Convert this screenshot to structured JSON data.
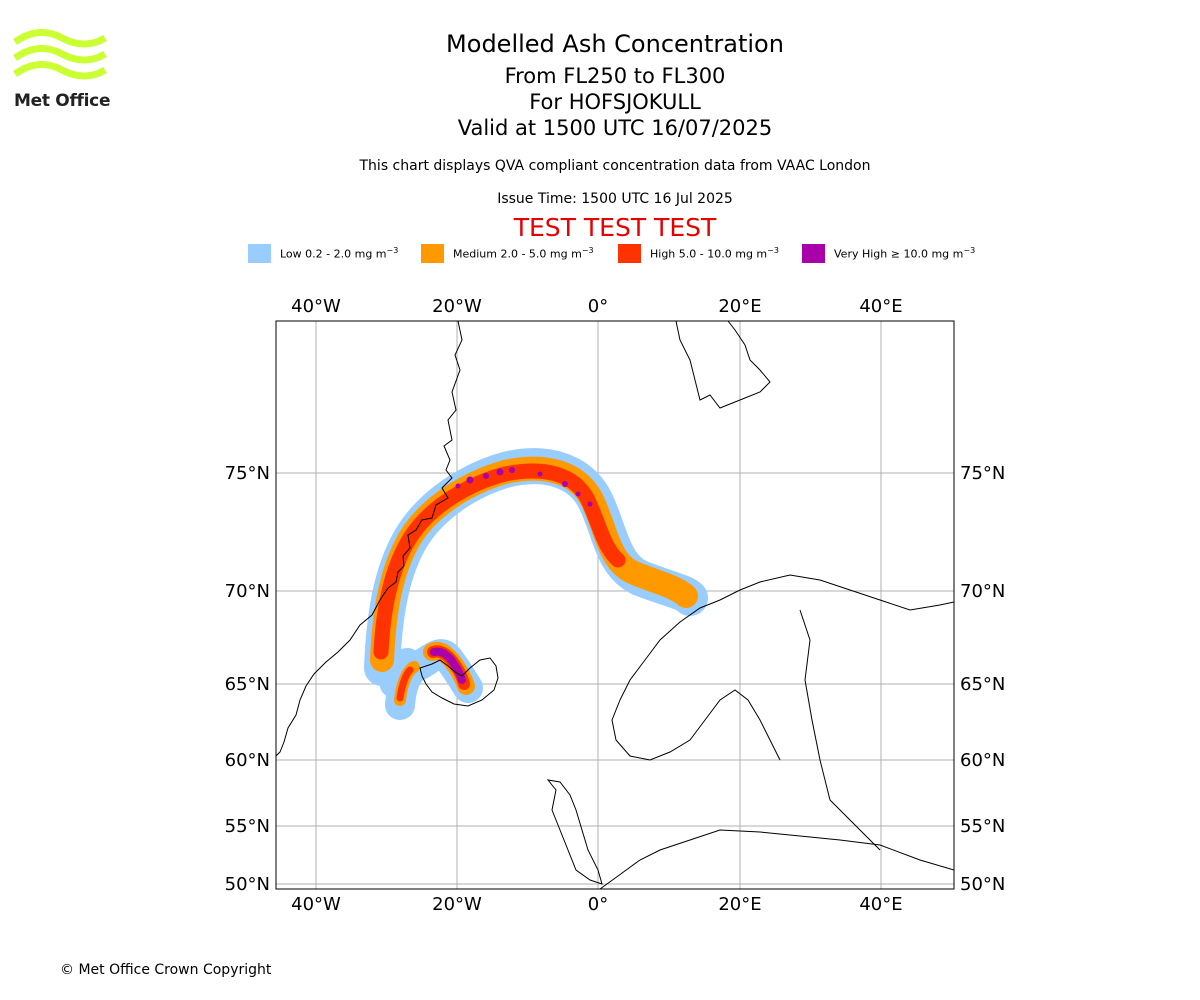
{
  "logo": {
    "text": "Met Office",
    "color": "#ccff33"
  },
  "header": {
    "title": "Modelled Ash Concentration",
    "level_range": "From FL250 to FL300",
    "volcano": "For HOFSJOKULL",
    "valid": "Valid at 1500 UTC 16/07/2025",
    "description": "This chart displays QVA compliant concentration data from VAAC London",
    "issue_time": "Issue Time: 1500 UTC 16 Jul 2025",
    "test_banner": "TEST TEST TEST"
  },
  "legend": [
    {
      "label": "Low 0.2 - 2.0 mg m",
      "color": "#99ccff"
    },
    {
      "label": "Medium 2.0 - 5.0 mg m",
      "color": "#ff9900"
    },
    {
      "label": "High 5.0 - 10.0 mg m",
      "color": "#ff3300"
    },
    {
      "label": "Very High  ≥  10.0 mg m",
      "color": "#aa00aa"
    }
  ],
  "legend_unit_exp": "−3",
  "map": {
    "lon_labels": [
      "40°W",
      "20°W",
      "0°",
      "20°E",
      "40°E"
    ],
    "lat_labels": [
      "75°N",
      "70°N",
      "65°N",
      "60°N",
      "55°N",
      "50°N"
    ],
    "gridlines": true
  },
  "footer": {
    "copyright": "© Met Office Crown Copyright"
  }
}
